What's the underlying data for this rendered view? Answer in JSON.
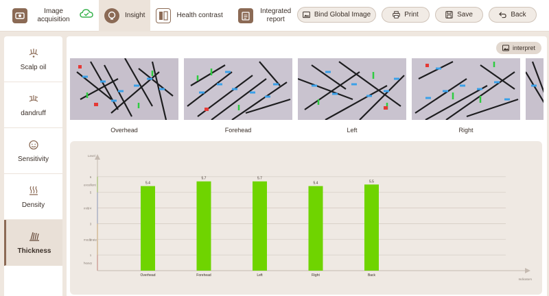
{
  "topnav": {
    "items": [
      {
        "label": "Image acquisition"
      },
      {
        "label": "Insight"
      },
      {
        "label": "Health contrast"
      },
      {
        "label": "Integrated report"
      }
    ]
  },
  "toolbar": {
    "bind_label": "Bind Global Image",
    "print_label": "Print",
    "save_label": "Save",
    "back_label": "Back"
  },
  "sidebar": {
    "items": [
      {
        "label": "Scalp oil"
      },
      {
        "label": "dandruff"
      },
      {
        "label": "Sensitivity"
      },
      {
        "label": "Density"
      },
      {
        "label": "Thickness"
      }
    ]
  },
  "main": {
    "interpret_label": "interpret",
    "photos": [
      {
        "label": "Overhead"
      },
      {
        "label": "Forehead"
      },
      {
        "label": "Left"
      },
      {
        "label": "Right"
      }
    ]
  },
  "chart_data": {
    "type": "bar",
    "ylabel": "Level",
    "xlabel": "Indicators",
    "categories": [
      "Overhead",
      "Forehead",
      "Left",
      "Right",
      "Back"
    ],
    "values": [
      5.4,
      5.7,
      5.7,
      5.4,
      5.5
    ],
    "data_labels": [
      "5.4",
      "5.7",
      "5.7",
      "5.4",
      "5.5"
    ],
    "ylim": [
      0,
      7
    ],
    "y_ticks": [
      {
        "value": 1,
        "label": "1"
      },
      {
        "value": 2,
        "label": "2"
      },
      {
        "value": 3,
        "label": "3"
      },
      {
        "value": 4,
        "label": "4"
      },
      {
        "value": 5,
        "label": "5"
      },
      {
        "value": 6,
        "label": "6"
      }
    ],
    "level_bands": [
      {
        "label": "heavy",
        "from": 0,
        "to": 1,
        "color": "#e2574c"
      },
      {
        "label": "moderate",
        "from": 1,
        "to": 3,
        "color": "#f0b044"
      },
      {
        "label": "mild",
        "from": 3,
        "to": 5,
        "color": "#5b8def"
      },
      {
        "label": "excellent",
        "from": 5,
        "to": 6,
        "color": "#6fd400"
      }
    ],
    "bar_color": "#6fd400",
    "grid": true
  }
}
